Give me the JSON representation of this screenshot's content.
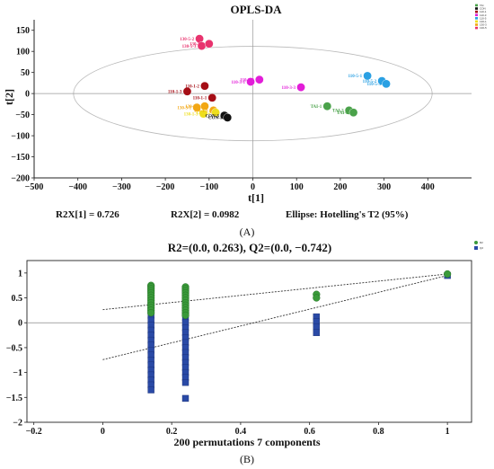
{
  "chart_data": [
    {
      "type": "scatter",
      "title": "OPLS-DA",
      "xlabel": "t[1]",
      "ylabel": "t[2]",
      "xlim": [
        -500,
        500
      ],
      "ylim": [
        -200,
        175
      ],
      "xticks": [
        "−500",
        "−400",
        "−300",
        "−200",
        "−100",
        "0",
        "100",
        "200",
        "300",
        "400"
      ],
      "xtick_values": [
        -500,
        -400,
        -300,
        -200,
        -100,
        0,
        100,
        200,
        300,
        400
      ],
      "yticks": [
        "−200",
        "−150",
        "−100",
        "−50",
        "0",
        "50",
        "100",
        "150"
      ],
      "ytick_values": [
        -200,
        -150,
        -100,
        -50,
        0,
        50,
        100,
        150
      ],
      "grid": false,
      "legend_position": "top-right",
      "stats": {
        "r2x1": "R2X[1] = 0.726",
        "r2x2": "R2X[2] = 0.0982",
        "ellipse": "Ellipse: Hotelling's T2 (95%)"
      },
      "ellipse": {
        "cx": 0,
        "cy": 0,
        "rx": 410,
        "ry": 112
      },
      "panel_label": "(A)",
      "series": [
        {
          "color": "#e8336e",
          "points": [
            {
              "x": -122,
              "y": 130,
              "label": "130-5-2"
            },
            {
              "x": -117,
              "y": 113,
              "label": "130-5-3"
            },
            {
              "x": -100,
              "y": 118,
              "label": "130-5-1"
            }
          ]
        },
        {
          "color": "#e21dd8",
          "points": [
            {
              "x": -5,
              "y": 28,
              "label": "110-3-1"
            },
            {
              "x": 15,
              "y": 33,
              "label": "110-3-2"
            },
            {
              "x": 110,
              "y": 15,
              "label": "110-3-3"
            }
          ]
        },
        {
          "color": "#2aa0e3",
          "points": [
            {
              "x": 262,
              "y": 42,
              "label": "110-5-1"
            },
            {
              "x": 295,
              "y": 30,
              "label": "110-5-2"
            },
            {
              "x": 305,
              "y": 23,
              "label": "110-5-3"
            }
          ]
        },
        {
          "color": "#a50d15",
          "points": [
            {
              "x": -150,
              "y": 5,
              "label": "110-1-3"
            },
            {
              "x": -110,
              "y": 18,
              "label": "110-1-2"
            },
            {
              "x": -93,
              "y": -10,
              "label": "110-1-1"
            }
          ]
        },
        {
          "color": "#4aa24a",
          "points": [
            {
              "x": 170,
              "y": -30,
              "label": "TAI-1"
            },
            {
              "x": 220,
              "y": -40,
              "label": "TAI-2"
            },
            {
              "x": 230,
              "y": -45,
              "label": "TAI-3"
            }
          ]
        },
        {
          "color": "#f2a714",
          "points": [
            {
              "x": -128,
              "y": -33,
              "label": "130-3-1"
            },
            {
              "x": -110,
              "y": -30,
              "label": "130-3-2"
            },
            {
              "x": -90,
              "y": -40,
              "label": "130-1-1"
            }
          ]
        },
        {
          "color": "#eede1d",
          "points": [
            {
              "x": -113,
              "y": -48,
              "label": "130-1-3"
            },
            {
              "x": -85,
              "y": -45,
              "label": "130-1-2"
            }
          ]
        },
        {
          "color": "#111111",
          "points": [
            {
              "x": -65,
              "y": -52,
              "label": "CON-3"
            },
            {
              "x": -58,
              "y": -57,
              "label": "CON-1"
            }
          ]
        }
      ],
      "legend": [
        {
          "name": "TAI",
          "color": "#4aa24a"
        },
        {
          "name": "CON",
          "color": "#111111"
        },
        {
          "name": "110-1",
          "color": "#a50d15"
        },
        {
          "name": "110-3",
          "color": "#e21dd8"
        },
        {
          "name": "110-5",
          "color": "#2aa0e3"
        },
        {
          "name": "130-1",
          "color": "#eede1d"
        },
        {
          "name": "130-3",
          "color": "#f2a714"
        },
        {
          "name": "130-5",
          "color": "#e8336e"
        }
      ]
    },
    {
      "type": "scatter",
      "title": "R2=(0.0, 0.263), Q2=(0.0, −0.742)",
      "xlabel": "200 permutations 7 components",
      "ylabel": "",
      "xlim": [
        -0.22,
        1.07
      ],
      "ylim": [
        -2,
        1.25
      ],
      "xticks": [
        "−0.2",
        "0",
        "0.2",
        "0.4",
        "0.6",
        "0.8",
        "1"
      ],
      "xtick_values": [
        -0.2,
        0,
        0.2,
        0.4,
        0.6,
        0.8,
        1
      ],
      "yticks": [
        "−2",
        "−1.5",
        "−1",
        "−0.5",
        "0",
        "0.5",
        "1"
      ],
      "ytick_values": [
        -2,
        -1.5,
        -1,
        -0.5,
        0,
        0.5,
        1
      ],
      "grid": false,
      "zero_line": true,
      "legend_position": "top-right",
      "panel_label": "(B)",
      "r2": {
        "color": "#3a9a3a",
        "points": [
          [
            0.14,
            0.75
          ],
          [
            0.14,
            0.72
          ],
          [
            0.14,
            0.68
          ],
          [
            0.14,
            0.64
          ],
          [
            0.14,
            0.6
          ],
          [
            0.14,
            0.55
          ],
          [
            0.14,
            0.5
          ],
          [
            0.14,
            0.45
          ],
          [
            0.14,
            0.4
          ],
          [
            0.14,
            0.35
          ],
          [
            0.14,
            0.3
          ],
          [
            0.14,
            0.25
          ],
          [
            0.14,
            0.2
          ],
          [
            0.24,
            0.72
          ],
          [
            0.24,
            0.68
          ],
          [
            0.24,
            0.64
          ],
          [
            0.24,
            0.6
          ],
          [
            0.24,
            0.55
          ],
          [
            0.24,
            0.5
          ],
          [
            0.24,
            0.45
          ],
          [
            0.24,
            0.4
          ],
          [
            0.24,
            0.35
          ],
          [
            0.24,
            0.3
          ],
          [
            0.24,
            0.25
          ],
          [
            0.24,
            0.2
          ],
          [
            0.24,
            0.15
          ],
          [
            0.62,
            0.57
          ],
          [
            0.62,
            0.5
          ],
          [
            1.0,
            0.98
          ]
        ],
        "line": [
          [
            0,
            0.263
          ],
          [
            1,
            0.98
          ]
        ]
      },
      "q2": {
        "color": "#2a4aa6",
        "points": [
          [
            0.14,
            0.35
          ],
          [
            0.14,
            0.25
          ],
          [
            0.14,
            0.15
          ],
          [
            0.14,
            0.05
          ],
          [
            0.14,
            -0.05
          ],
          [
            0.14,
            -0.15
          ],
          [
            0.14,
            -0.25
          ],
          [
            0.14,
            -0.35
          ],
          [
            0.14,
            -0.45
          ],
          [
            0.14,
            -0.55
          ],
          [
            0.14,
            -0.65
          ],
          [
            0.14,
            -0.75
          ],
          [
            0.14,
            -0.85
          ],
          [
            0.14,
            -0.95
          ],
          [
            0.14,
            -1.05
          ],
          [
            0.14,
            -1.15
          ],
          [
            0.14,
            -1.25
          ],
          [
            0.14,
            -1.35
          ],
          [
            0.24,
            0.1
          ],
          [
            0.24,
            0.0
          ],
          [
            0.24,
            -0.1
          ],
          [
            0.24,
            -0.2
          ],
          [
            0.24,
            -0.3
          ],
          [
            0.24,
            -0.4
          ],
          [
            0.24,
            -0.5
          ],
          [
            0.24,
            -0.6
          ],
          [
            0.24,
            -0.7
          ],
          [
            0.24,
            -0.8
          ],
          [
            0.24,
            -0.9
          ],
          [
            0.24,
            -1.0
          ],
          [
            0.24,
            -1.1
          ],
          [
            0.24,
            -1.2
          ],
          [
            0.24,
            -1.52
          ],
          [
            0.62,
            0.12
          ],
          [
            0.62,
            0.02
          ],
          [
            0.62,
            -0.08
          ],
          [
            0.62,
            -0.2
          ],
          [
            1.0,
            0.95
          ]
        ],
        "line": [
          [
            0,
            -0.742
          ],
          [
            1,
            0.95
          ]
        ]
      },
      "legend": [
        {
          "name": "R2",
          "color": "#3a9a3a"
        },
        {
          "name": "Q2",
          "color": "#2a4aa6"
        }
      ]
    }
  ]
}
